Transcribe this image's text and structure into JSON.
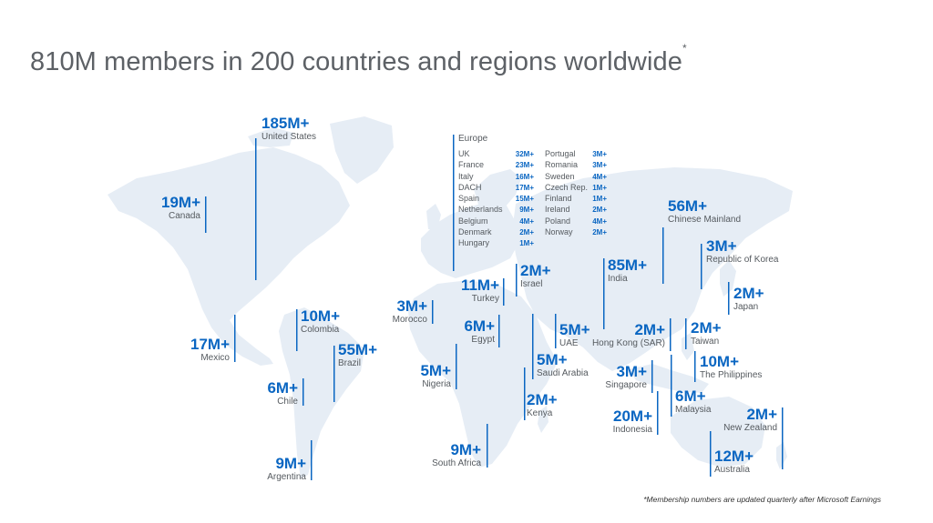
{
  "title": "810M members in 200 countries and regions worldwide",
  "title_mark": "*",
  "footnote": "*Membership numbers are updated quarterly after Microsoft Earnings",
  "colors": {
    "accent": "#0a66c2",
    "land": "#e6edf5",
    "text": "#555a5f"
  },
  "regions": {
    "us": {
      "value": "185M+",
      "name": "United States"
    },
    "canada": {
      "value": "19M+",
      "name": "Canada"
    },
    "mexico": {
      "value": "17M+",
      "name": "Mexico"
    },
    "colombia": {
      "value": "10M+",
      "name": "Colombia"
    },
    "brazil": {
      "value": "55M+",
      "name": "Brazil"
    },
    "chile": {
      "value": "6M+",
      "name": "Chile"
    },
    "argentina": {
      "value": "9M+",
      "name": "Argentina"
    },
    "morocco": {
      "value": "3M+",
      "name": "Morocco"
    },
    "turkey": {
      "value": "11M+",
      "name": "Turkey"
    },
    "israel": {
      "value": "2M+",
      "name": "Israel"
    },
    "egypt": {
      "value": "6M+",
      "name": "Egypt"
    },
    "nigeria": {
      "value": "5M+",
      "name": "Nigeria"
    },
    "saudi": {
      "value": "5M+",
      "name": "Saudi Arabia"
    },
    "uae": {
      "value": "5M+",
      "name": "UAE"
    },
    "kenya": {
      "value": "2M+",
      "name": "Kenya"
    },
    "south_africa": {
      "value": "9M+",
      "name": "South Africa"
    },
    "india": {
      "value": "85M+",
      "name": "India"
    },
    "china": {
      "value": "56M+",
      "name": "Chinese Mainland"
    },
    "korea": {
      "value": "3M+",
      "name": "Republic of Korea"
    },
    "japan": {
      "value": "2M+",
      "name": "Japan"
    },
    "hong_kong": {
      "value": "2M+",
      "name": "Hong Kong (SAR)"
    },
    "taiwan": {
      "value": "2M+",
      "name": "Taiwan"
    },
    "philippines": {
      "value": "10M+",
      "name": "The Philippines"
    },
    "singapore": {
      "value": "3M+",
      "name": "Singapore"
    },
    "malaysia": {
      "value": "6M+",
      "name": "Malaysia"
    },
    "indonesia": {
      "value": "20M+",
      "name": "Indonesia"
    },
    "new_zealand": {
      "value": "2M+",
      "name": "New Zealand"
    },
    "australia": {
      "value": "12M+",
      "name": "Australia"
    }
  },
  "europe": {
    "heading": "Europe",
    "left": [
      {
        "name": "UK",
        "value": "32M+"
      },
      {
        "name": "France",
        "value": "23M+"
      },
      {
        "name": "Italy",
        "value": "16M+"
      },
      {
        "name": "DACH",
        "value": "17M+"
      },
      {
        "name": "Spain",
        "value": "15M+"
      },
      {
        "name": "Netherlands",
        "value": "9M+"
      },
      {
        "name": "Belgium",
        "value": "4M+"
      },
      {
        "name": "Denmark",
        "value": "2M+"
      },
      {
        "name": "Hungary",
        "value": "1M+"
      }
    ],
    "right": [
      {
        "name": "Portugal",
        "value": "3M+"
      },
      {
        "name": "Romania",
        "value": "3M+"
      },
      {
        "name": "Sweden",
        "value": "4M+"
      },
      {
        "name": "Czech Rep.",
        "value": "1M+"
      },
      {
        "name": "Finland",
        "value": "1M+"
      },
      {
        "name": "Ireland",
        "value": "2M+"
      },
      {
        "name": "Poland",
        "value": "4M+"
      },
      {
        "name": "Norway",
        "value": "2M+"
      }
    ]
  }
}
